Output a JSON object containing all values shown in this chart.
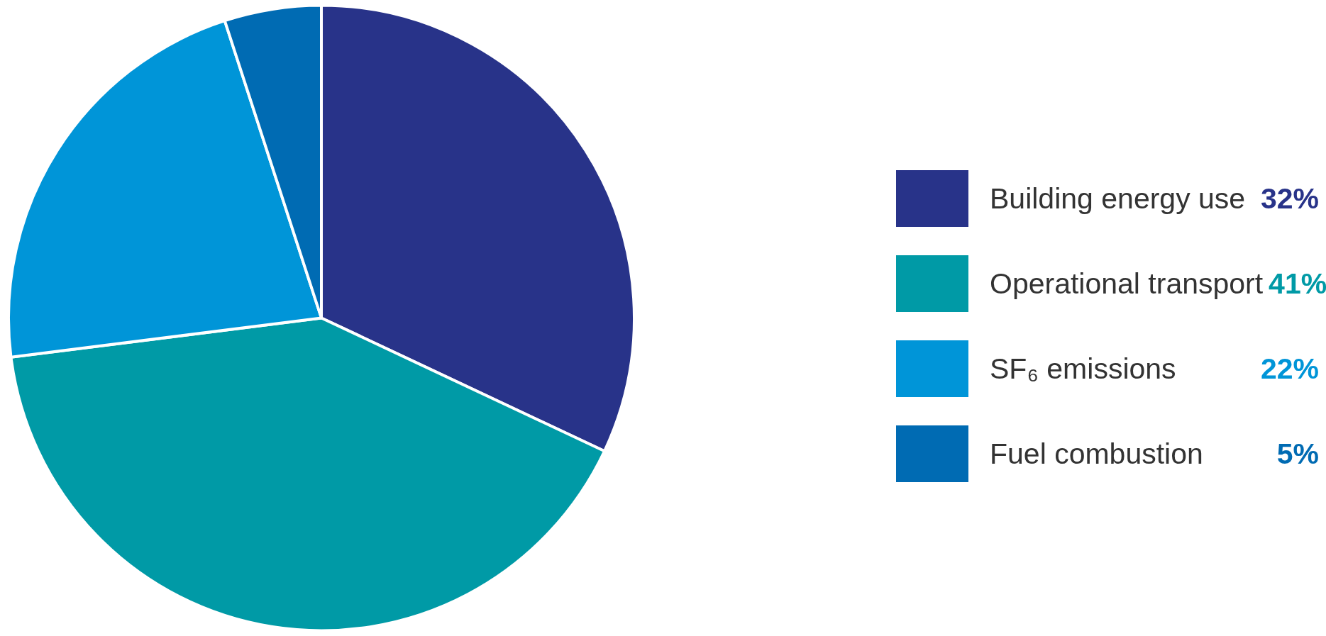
{
  "chart_data": {
    "type": "pie",
    "categories": [
      "Building energy use",
      "Operational transport",
      "SF₆ emissions",
      "Fuel combustion"
    ],
    "values": [
      32,
      41,
      22,
      5
    ],
    "colors": [
      "#283389",
      "#009aa6",
      "#0095d8",
      "#006bb3"
    ],
    "value_labels": [
      "32%",
      "41%",
      "22%",
      "5%"
    ],
    "legend": "right"
  }
}
